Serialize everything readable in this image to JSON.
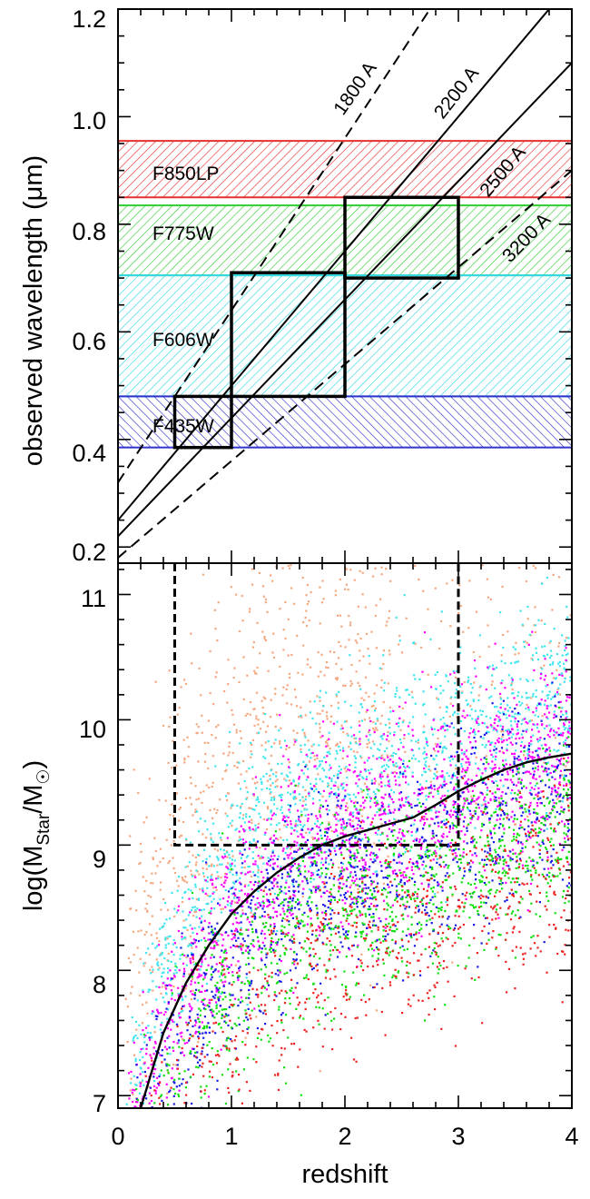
{
  "chart_data": [
    {
      "type": "line",
      "xlabel": "redshift",
      "ylabel": "observed wavelength (μm)",
      "xlim": [
        0,
        4
      ],
      "ylim": [
        0.17,
        1.2
      ],
      "x_ticks": [
        "0",
        "1",
        "2",
        "3",
        "4"
      ],
      "y_ticks": [
        {
          "value": 0.2,
          "label": "0.2"
        },
        {
          "value": 0.4,
          "label": "0.4"
        },
        {
          "value": 0.6,
          "label": "0.6"
        },
        {
          "value": 0.8,
          "label": "0.8"
        },
        {
          "value": 1.0,
          "label": "1.0"
        },
        {
          "value": 1.2,
          "label": "1.2"
        }
      ],
      "filter_bands": [
        {
          "label": "F850LP",
          "ymin": 0.85,
          "ymax": 0.955,
          "color": "#e53030"
        },
        {
          "label": "F775W",
          "ymin": 0.705,
          "ymax": 0.835,
          "color": "#32cc32"
        },
        {
          "label": "F606W",
          "ymin": 0.48,
          "ymax": 0.705,
          "color": "#33d7e6"
        },
        {
          "label": "F435W",
          "ymin": 0.385,
          "ymax": 0.48,
          "color": "#3333cc"
        }
      ],
      "rest_lines": [
        {
          "label": "1800 A",
          "rest_um": 0.18,
          "style": "dashed"
        },
        {
          "label": "2200 A",
          "rest_um": 0.22,
          "style": "solid"
        },
        {
          "label": "2500 A",
          "rest_um": 0.25,
          "style": "solid"
        },
        {
          "label": "3200 A",
          "rest_um": 0.32,
          "style": "dashed"
        }
      ],
      "selection_boxes": [
        {
          "x": [
            0.5,
            1.0
          ],
          "y": [
            0.385,
            0.48
          ]
        },
        {
          "x": [
            1.0,
            2.0
          ],
          "y": [
            0.48,
            0.71
          ]
        },
        {
          "x": [
            2.0,
            3.0
          ],
          "y": [
            0.7,
            0.85
          ]
        }
      ]
    },
    {
      "type": "scatter",
      "xlabel": "redshift",
      "ylabel": "log(M_Star/M_☉)",
      "ylabel_parts": {
        "pre": "log(M",
        "sub1": "Star",
        "mid": "/M",
        "sub2": "☉",
        "post": ")"
      },
      "xlim": [
        0,
        4
      ],
      "ylim": [
        6.9,
        11.25
      ],
      "x_ticks": [
        "0",
        "1",
        "2",
        "3",
        "4"
      ],
      "y_ticks": [
        "7",
        "8",
        "9",
        "10",
        "11"
      ],
      "series": [
        {
          "color": "#f5a780",
          "mass_offset_from_curve": 1.1
        },
        {
          "color": "#40e5ee",
          "mass_offset_from_curve": 0.45
        },
        {
          "color": "#ff00ff",
          "mass_offset_from_curve": 0.0
        },
        {
          "color": "#1a1ae6",
          "mass_offset_from_curve": -0.35
        },
        {
          "color": "#10e010",
          "mass_offset_from_curve": -0.6
        },
        {
          "color": "#ee2222",
          "mass_offset_from_curve": -0.9
        }
      ],
      "mass_limit_curve": {
        "x": [
          0.2,
          0.4,
          0.6,
          0.8,
          1.0,
          1.2,
          1.4,
          1.6,
          1.8,
          2.0,
          2.2,
          2.4,
          2.6,
          2.8,
          3.0,
          3.2,
          3.4,
          3.6,
          3.8,
          4.0
        ],
        "y": [
          6.9,
          7.5,
          7.9,
          8.2,
          8.45,
          8.63,
          8.78,
          8.9,
          9.0,
          9.07,
          9.12,
          9.17,
          9.22,
          9.32,
          9.43,
          9.52,
          9.6,
          9.66,
          9.7,
          9.73
        ]
      },
      "selection_region": {
        "x": [
          0.5,
          3.0
        ],
        "y_min": 9.0
      }
    }
  ],
  "colors": {
    "axes": "#000000",
    "curve": "#000000"
  }
}
